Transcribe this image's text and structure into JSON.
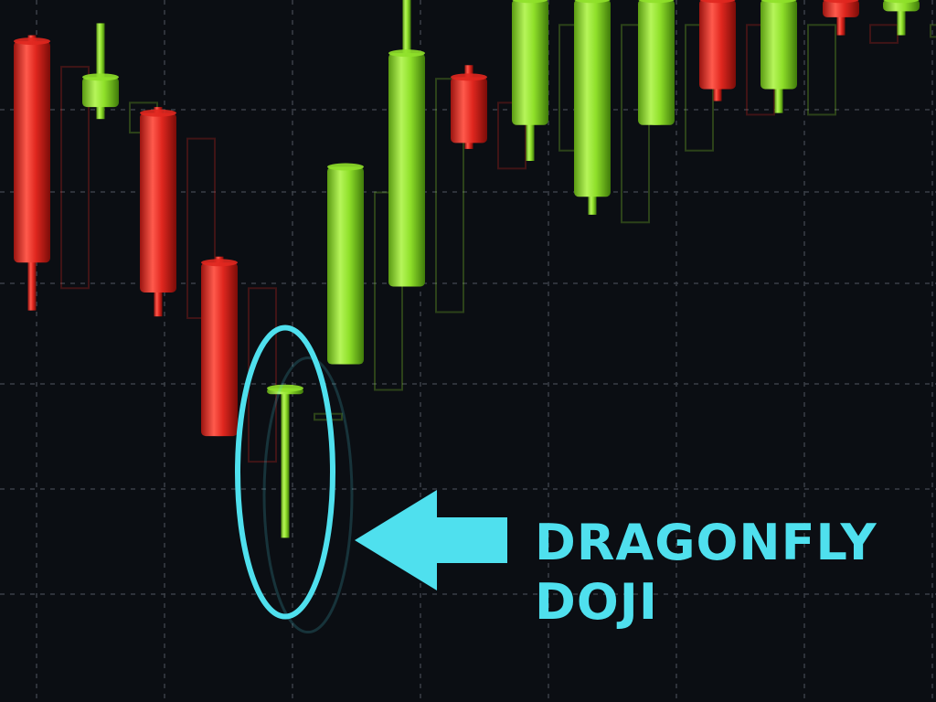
{
  "chart_data": {
    "type": "candlestick",
    "style": "3d-glossy",
    "grid": true,
    "colors": {
      "background": "#0b0e13",
      "grid": "#3a3f47",
      "bullish": "#8fe02a",
      "bearish": "#e0271f",
      "highlight": "#4fe0ee"
    },
    "candles": [
      {
        "direction": "bear",
        "open": 97,
        "close": 60,
        "high": 98,
        "low": 52
      },
      {
        "direction": "bull",
        "open": 86,
        "close": 91,
        "high": 100,
        "low": 84
      },
      {
        "direction": "bear",
        "open": 85,
        "close": 55,
        "high": 86,
        "low": 51
      },
      {
        "direction": "bear",
        "open": 60,
        "close": 31,
        "high": 61,
        "low": 31
      },
      {
        "direction": "bull",
        "open": 38,
        "close": 39,
        "high": 39,
        "low": 14
      },
      {
        "direction": "bull",
        "open": 43,
        "close": 76,
        "high": 76,
        "low": 43
      },
      {
        "direction": "bull",
        "open": 56,
        "close": 95,
        "high": 104,
        "low": 56
      },
      {
        "direction": "bear",
        "open": 91,
        "close": 80,
        "high": 93,
        "low": 79
      },
      {
        "direction": "bull",
        "open": 83,
        "close": 104,
        "high": 104,
        "low": 77
      },
      {
        "direction": "bull",
        "open": 71,
        "close": 104,
        "high": 104,
        "low": 68
      },
      {
        "direction": "bull",
        "open": 83,
        "close": 104,
        "high": 104,
        "low": 83
      },
      {
        "direction": "bear",
        "open": 104,
        "close": 89,
        "high": 104,
        "low": 87
      },
      {
        "direction": "bull",
        "open": 89,
        "close": 104,
        "high": 104,
        "low": 85
      },
      {
        "direction": "bear",
        "open": 104,
        "close": 101,
        "high": 104,
        "low": 98
      },
      {
        "direction": "bull",
        "open": 102,
        "close": 104,
        "high": 104,
        "low": 98
      }
    ],
    "highlight": {
      "candle_index": 4
    },
    "annotation": {
      "line1": "DRAGONFLY",
      "line2": "DOJI"
    }
  }
}
